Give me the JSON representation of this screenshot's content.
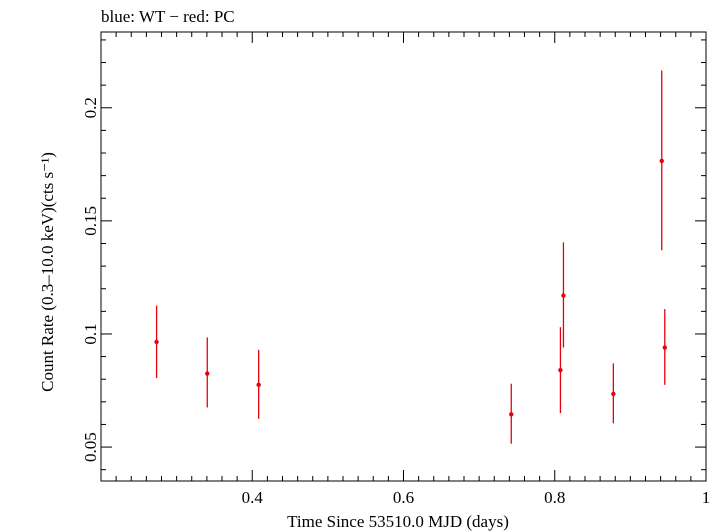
{
  "chart_data": {
    "type": "scatter",
    "title": "blue: WT − red: PC",
    "xlabel": "Time Since 53510.0 MJD (days)",
    "ylabel": "Count Rate (0.3–10.0 keV)(cts s⁻¹)",
    "xlim": [
      0.2,
      1.0
    ],
    "ylim": [
      0.035,
      0.2335
    ],
    "x_ticks": [
      {
        "value": 0.4,
        "label": "0.4"
      },
      {
        "value": 0.6,
        "label": "0.6"
      },
      {
        "value": 0.8,
        "label": "0.8"
      },
      {
        "value": 1.0,
        "label": "1"
      }
    ],
    "y_ticks": [
      {
        "value": 0.05,
        "label": "0.05"
      },
      {
        "value": 0.1,
        "label": "0.1"
      },
      {
        "value": 0.15,
        "label": "0.15"
      },
      {
        "value": 0.2,
        "label": "0.2"
      }
    ],
    "grid": false,
    "series": [
      {
        "name": "PC",
        "color": "#e8000b",
        "points": [
          {
            "x": 0.2735,
            "y": 0.0965,
            "ylo": 0.0805,
            "yhi": 0.1125
          },
          {
            "x": 0.3405,
            "y": 0.0825,
            "ylo": 0.0675,
            "yhi": 0.0985
          },
          {
            "x": 0.4085,
            "y": 0.0775,
            "ylo": 0.0625,
            "yhi": 0.093
          },
          {
            "x": 0.7425,
            "y": 0.0645,
            "ylo": 0.0515,
            "yhi": 0.078
          },
          {
            "x": 0.8075,
            "y": 0.084,
            "ylo": 0.065,
            "yhi": 0.103
          },
          {
            "x": 0.8115,
            "y": 0.117,
            "ylo": 0.094,
            "yhi": 0.1405
          },
          {
            "x": 0.8775,
            "y": 0.0735,
            "ylo": 0.0605,
            "yhi": 0.087
          },
          {
            "x": 0.9415,
            "y": 0.1765,
            "ylo": 0.137,
            "yhi": 0.2165
          },
          {
            "x": 0.9455,
            "y": 0.094,
            "ylo": 0.0775,
            "yhi": 0.111
          }
        ]
      }
    ]
  }
}
